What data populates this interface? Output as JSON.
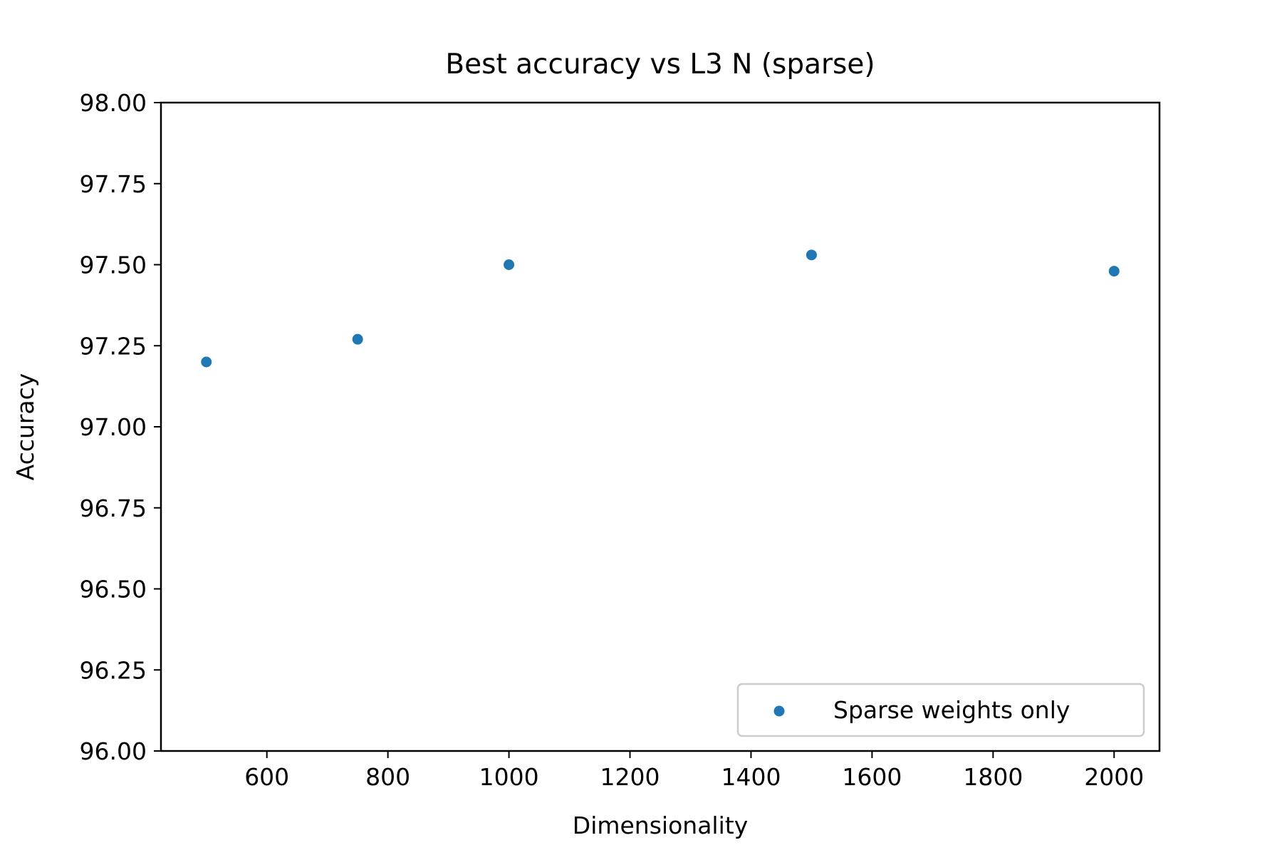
{
  "chart_data": {
    "type": "scatter",
    "title": "Best accuracy vs L3 N  (sparse)",
    "xlabel": "Dimensionality",
    "ylabel": "Accuracy",
    "xlim": [
      425,
      2075
    ],
    "ylim": [
      96.0,
      98.0
    ],
    "xticks": [
      600,
      800,
      1000,
      1200,
      1400,
      1600,
      1800,
      2000
    ],
    "xtick_labels": [
      "600",
      "800",
      "1000",
      "1200",
      "1400",
      "1600",
      "1800",
      "2000"
    ],
    "yticks": [
      96.0,
      96.25,
      96.5,
      96.75,
      97.0,
      97.25,
      97.5,
      97.75,
      98.0
    ],
    "ytick_labels": [
      "96.00",
      "96.25",
      "96.50",
      "96.75",
      "97.00",
      "97.25",
      "97.50",
      "97.75",
      "98.00"
    ],
    "grid": false,
    "legend_position": "lower-right",
    "series": [
      {
        "name": "Sparse weights only",
        "color": "#1f77b4",
        "x": [
          500,
          750,
          1000,
          1500,
          2000
        ],
        "y": [
          97.2,
          97.27,
          97.5,
          97.53,
          97.48
        ]
      }
    ]
  }
}
